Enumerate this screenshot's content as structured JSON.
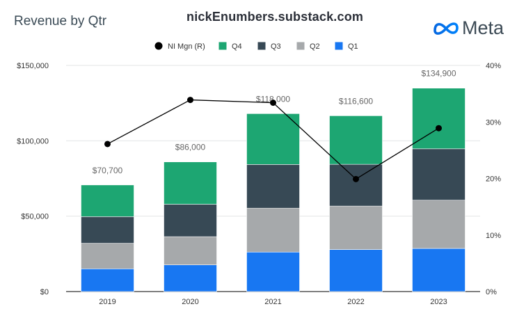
{
  "header": {
    "title": "Revenue by Qtr",
    "source": "nickEnumbers.substack.com",
    "brand": "Meta"
  },
  "chart_data": {
    "type": "bar",
    "stacked": true,
    "categories": [
      "2019",
      "2020",
      "2021",
      "2022",
      "2023"
    ],
    "series": [
      {
        "name": "Q1",
        "color": "#1877f2",
        "values": [
          15100,
          17700,
          26200,
          27900,
          28600
        ]
      },
      {
        "name": "Q2",
        "color": "#a6a9ab",
        "values": [
          16900,
          18700,
          29100,
          28800,
          32000
        ]
      },
      {
        "name": "Q3",
        "color": "#374955",
        "values": [
          17700,
          21500,
          29000,
          27700,
          34100
        ]
      },
      {
        "name": "Q4",
        "color": "#1da672",
        "values": [
          21000,
          28100,
          33700,
          32200,
          40200
        ]
      }
    ],
    "totals": [
      "$70,700",
      "$86,000",
      "$118,000",
      "$116,600",
      "$134,900"
    ],
    "line": {
      "name": "NI Mgn (R)",
      "color": "#000000",
      "values": [
        26.1,
        33.9,
        33.4,
        19.9,
        28.9
      ]
    },
    "legend": [
      "NI Mgn (R)",
      "Q4",
      "Q3",
      "Q2",
      "Q1"
    ],
    "legend_position": "top",
    "y_left": {
      "min": 0,
      "max": 150000,
      "ticks": [
        0,
        50000,
        100000,
        150000
      ],
      "tick_labels": [
        "$0",
        "$50,000",
        "$100,000",
        "$150,000"
      ]
    },
    "y_right": {
      "min": 0,
      "max": 40,
      "ticks": [
        0,
        10,
        20,
        30,
        40
      ],
      "tick_labels": [
        "0%",
        "10%",
        "20%",
        "30%",
        "40%"
      ]
    },
    "grid": true
  }
}
